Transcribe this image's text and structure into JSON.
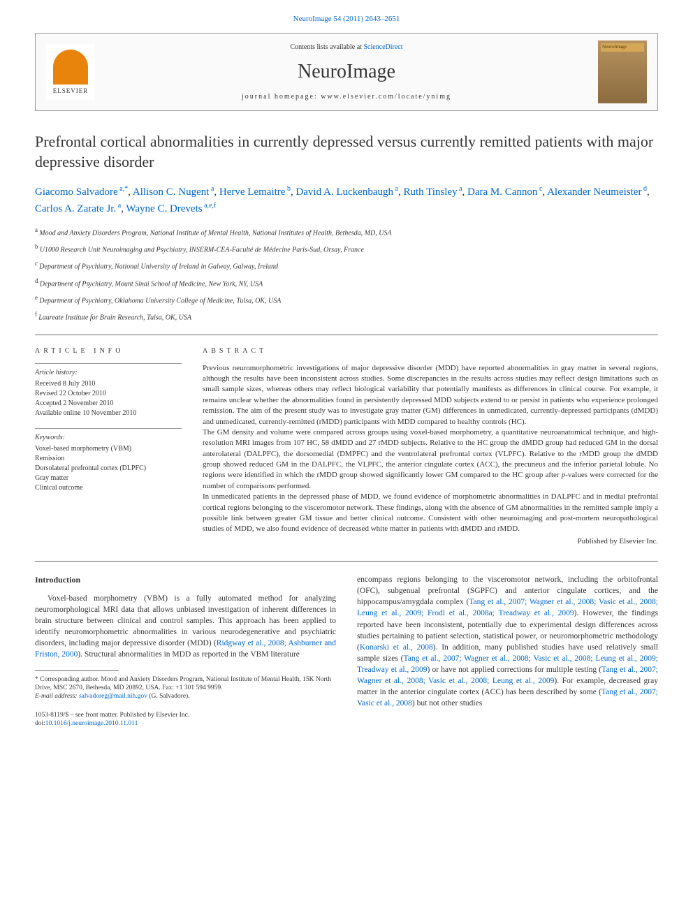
{
  "header_link": "NeuroImage 54 (2011) 2643–2651",
  "header_box": {
    "contents_prefix": "Contents lists available at ",
    "contents_link": "ScienceDirect",
    "journal_name": "NeuroImage",
    "homepage_prefix": "journal homepage: ",
    "homepage_link": "www.elsevier.com/locate/ynimg",
    "elsevier_label": "ELSEVIER",
    "cover_label": "NeuroImage"
  },
  "title": "Prefrontal cortical abnormalities in currently depressed versus currently remitted patients with major depressive disorder",
  "authors": [
    {
      "name": "Giacomo Salvadore",
      "sup": "a,*"
    },
    {
      "name": "Allison C. Nugent",
      "sup": "a"
    },
    {
      "name": "Herve Lemaitre",
      "sup": "b"
    },
    {
      "name": "David A. Luckenbaugh",
      "sup": "a"
    },
    {
      "name": "Ruth Tinsley",
      "sup": "a"
    },
    {
      "name": "Dara M. Cannon",
      "sup": "c"
    },
    {
      "name": "Alexander Neumeister",
      "sup": "d"
    },
    {
      "name": "Carlos A. Zarate Jr.",
      "sup": "a"
    },
    {
      "name": "Wayne C. Drevets",
      "sup": "a,e,f"
    }
  ],
  "affiliations": [
    {
      "sup": "a",
      "text": "Mood and Anxiety Disorders Program, National Institute of Mental Health, National Institutes of Health, Bethesda, MD, USA"
    },
    {
      "sup": "b",
      "text": "U1000 Research Unit Neuroimaging and Psychiatry, INSERM-CEA-Faculté de Médecine Paris-Sud, Orsay, France"
    },
    {
      "sup": "c",
      "text": "Department of Psychiatry, National University of Ireland in Galway, Galway, Ireland"
    },
    {
      "sup": "d",
      "text": "Department of Psychiatry, Mount Sinai School of Medicine, New York, NY, USA"
    },
    {
      "sup": "e",
      "text": "Department of Psychiatry, Oklahoma University College of Medicine, Tulsa, OK, USA"
    },
    {
      "sup": "f",
      "text": "Laureate Institute for Brain Research, Tulsa, OK, USA"
    }
  ],
  "article_info": {
    "heading": "ARTICLE INFO",
    "history_label": "Article history:",
    "history": [
      "Received 8 July 2010",
      "Revised 22 October 2010",
      "Accepted 2 November 2010",
      "Available online 10 November 2010"
    ],
    "keywords_label": "Keywords:",
    "keywords": [
      "Voxel-based morphometry (VBM)",
      "Remission",
      "Dorsolateral prefrontal cortex (DLPFC)",
      "Gray matter",
      "Clinical outcome"
    ]
  },
  "abstract": {
    "heading": "ABSTRACT",
    "paragraphs": [
      "Previous neuromorphometric investigations of major depressive disorder (MDD) have reported abnormalities in gray matter in several regions, although the results have been inconsistent across studies. Some discrepancies in the results across studies may reflect design limitations such as small sample sizes, whereas others may reflect biological variability that potentially manifests as differences in clinical course. For example, it remains unclear whether the abnormalities found in persistently depressed MDD subjects extend to or persist in patients who experience prolonged remission. The aim of the present study was to investigate gray matter (GM) differences in unmedicated, currently-depressed participants (dMDD) and unmedicated, currently-remitted (rMDD) participants with MDD compared to healthy controls (HC).",
      "The GM density and volume were compared across groups using voxel-based morphometry, a quantitative neuroanatomical technique, and high-resolution MRI images from 107 HC, 58 dMDD and 27 rMDD subjects. Relative to the HC group the dMDD group had reduced GM in the dorsal anterolateral (DALPFC), the dorsomedial (DMPFC) and the ventrolateral prefrontal cortex (VLPFC). Relative to the rMDD group the dMDD group showed reduced GM in the DALPFC, the VLPFC, the anterior cingulate cortex (ACC), the precuneus and the inferior parietal lobule. No regions were identified in which the rMDD group showed significantly lower GM compared to the HC group after p-values were corrected for the number of comparisons performed.",
      "In unmedicated patients in the depressed phase of MDD, we found evidence of morphometric abnormalities in DALPFC and in medial prefrontal cortical regions belonging to the visceromotor network. These findings, along with the absence of GM abnormalities in the remitted sample imply a possible link between greater GM tissue and better clinical outcome. Consistent with other neuroimaging and post-mortem neuropathological studies of MDD, we also found evidence of decreased white matter in patients with dMDD and rMDD."
    ],
    "publisher": "Published by Elsevier Inc."
  },
  "body": {
    "intro_heading": "Introduction",
    "left_para": "Voxel-based morphometry (VBM) is a fully automated method for analyzing neuromorphological MRI data that allows unbiased investigation of inherent differences in brain structure between clinical and control samples. This approach has been applied to identify neuromorphometric abnormalities in various neurodegenerative and psychiatric disorders, including major depressive disorder (MDD) (Ridgway et al., 2008; Ashburner and Friston, 2000). Structural abnormalities in MDD as reported in the VBM literature",
    "right_para": "encompass regions belonging to the visceromotor network, including the orbitofrontal (OFC), subgenual prefrontal (SGPFC) and anterior cingulate cortices, and the hippocampus/amygdala complex (Tang et al., 2007; Wagner et al., 2008; Vasic et al., 2008; Leung et al., 2009; Frodl et al., 2008a; Treadway et al., 2009). However, the findings reported have been inconsistent, potentially due to experimental design differences across studies pertaining to patient selection, statistical power, or neuromorphometric methodology (Konarski et al., 2008). In addition, many published studies have used relatively small sample sizes (Tang et al., 2007; Wagner et al., 2008; Vasic et al., 2008; Leung et al., 2009; Treadway et al., 2009) or have not applied corrections for multiple testing (Tang et al., 2007; Wagner et al., 2008; Vasic et al., 2008; Leung et al., 2009). For example, decreased gray matter in the anterior cingulate cortex (ACC) has been described by some (Tang et al., 2007; Vasic et al., 2008) but not other studies"
  },
  "corresponding": {
    "star": "*",
    "text": "Corresponding author. Mood and Anxiety Disorders Program, National Institute of Mental Health, 15K North Drive, MSC 2670, Bethesda, MD 20892, USA. Fax: +1 301 594 9959.",
    "email_label": "E-mail address: ",
    "email": "salvadoreg@mail.nih.gov",
    "email_suffix": " (G. Salvadore)."
  },
  "footer": {
    "issn_line": "1053-8119/$ – see front matter. Published by Elsevier Inc.",
    "doi_prefix": "doi:",
    "doi": "10.1016/j.neuroimage.2010.11.011"
  },
  "links": {
    "refs_left": [
      "Ridgway et al., 2008; Ashburner and Friston, 2000"
    ],
    "refs_right_1": "Tang et al., 2007; Wagner et al., 2008; Vasic et al., 2008; Leung et al., 2009; Frodl et al., 2008a; Treadway et al., 2009",
    "refs_right_2": "Konarski et al., 2008",
    "refs_right_3": "Tang et al., 2007; Wagner et al., 2008; Vasic et al., 2008; Leung et al., 2009; Treadway et al., 2009",
    "refs_right_4": "Tang et al., 2007; Wagner et al., 2008; Vasic et al., 2008; Leung et al., 2009",
    "refs_right_5": "Tang et al., 2007; Vasic et al., 2008"
  },
  "colors": {
    "link": "#0066cc",
    "text": "#333333",
    "border": "#666666",
    "elsevier_orange": "#e8830c"
  }
}
